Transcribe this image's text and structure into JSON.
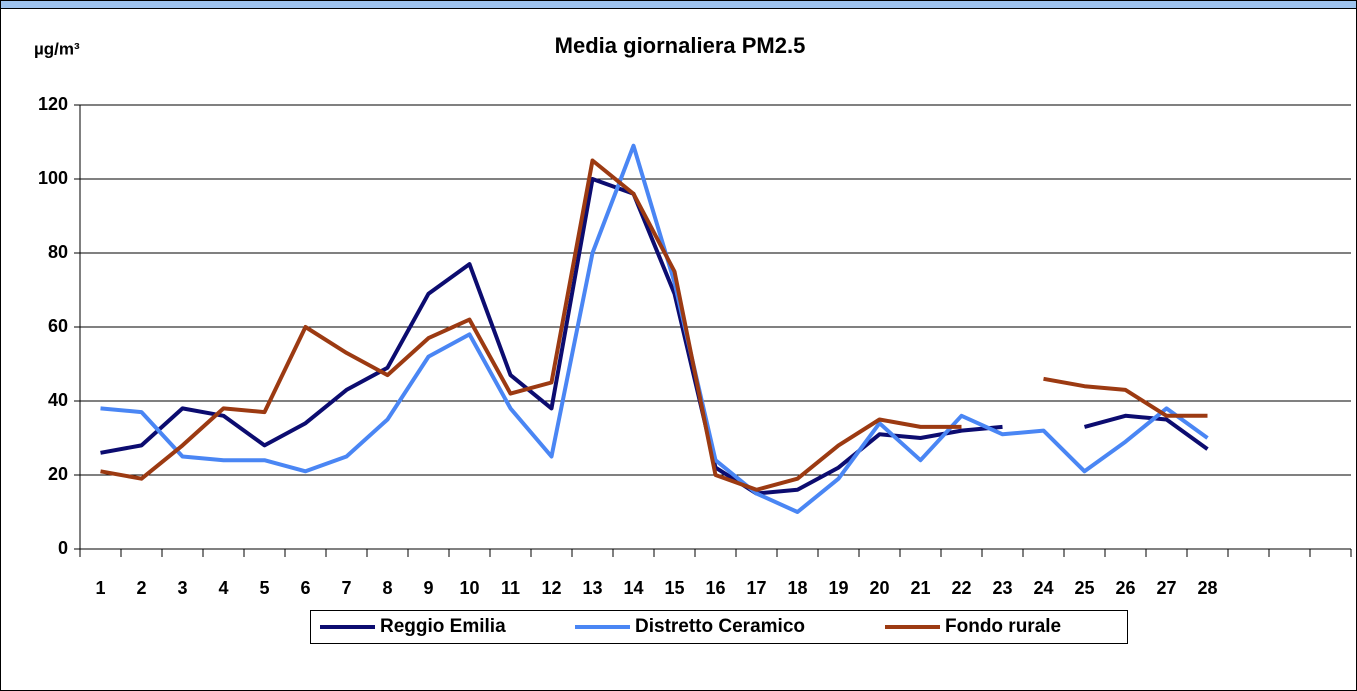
{
  "chart_data": {
    "type": "line",
    "title": "Media giornaliera PM2.5",
    "y_label": "µg/m³",
    "categories": [
      "1",
      "2",
      "3",
      "4",
      "5",
      "6",
      "7",
      "8",
      "9",
      "10",
      "11",
      "12",
      "13",
      "14",
      "15",
      "16",
      "17",
      "18",
      "19",
      "20",
      "21",
      "22",
      "23",
      "24",
      "25",
      "26",
      "27",
      "28",
      null,
      null,
      null
    ],
    "series": [
      {
        "name": "Reggio Emilia",
        "color": "#0c0c70",
        "values": [
          26,
          28,
          38,
          36,
          28,
          34,
          43,
          49,
          69,
          77,
          47,
          38,
          100,
          96,
          69,
          22,
          15,
          16,
          22,
          31,
          30,
          32,
          33,
          null,
          33,
          36,
          35,
          27,
          null,
          null,
          null
        ]
      },
      {
        "name": "Distretto Ceramico",
        "color": "#4a86f4",
        "values": [
          38,
          37,
          25,
          24,
          24,
          21,
          25,
          35,
          52,
          58,
          38,
          25,
          80,
          109,
          72,
          24,
          15,
          10,
          19,
          34,
          24,
          36,
          31,
          32,
          21,
          29,
          38,
          30,
          null,
          null,
          null
        ]
      },
      {
        "name": "Fondo rurale",
        "color": "#9c3a12",
        "values": [
          21,
          19,
          28,
          38,
          37,
          60,
          53,
          47,
          57,
          62,
          42,
          45,
          105,
          96,
          75,
          20,
          16,
          19,
          28,
          35,
          33,
          33,
          null,
          46,
          44,
          43,
          36,
          36,
          null,
          null,
          null
        ]
      }
    ],
    "ylim": [
      0,
      120
    ],
    "yticks": [
      0,
      20,
      40,
      60,
      80,
      100,
      120
    ],
    "grid": true
  }
}
